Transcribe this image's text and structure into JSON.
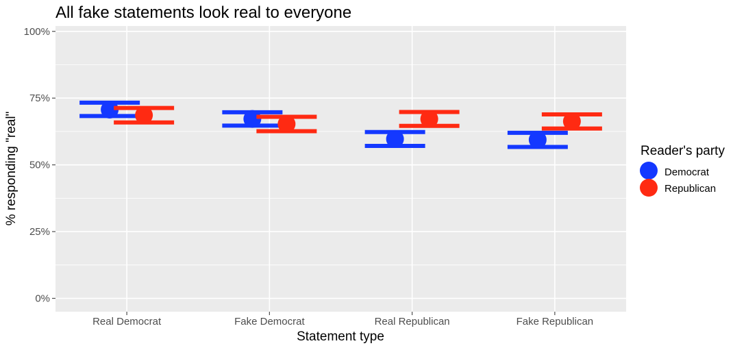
{
  "chart_data": {
    "type": "scatter",
    "title": "All fake statements look real to everyone",
    "xlabel": "Statement type",
    "ylabel": "% responding \"real\"",
    "categories": [
      "Real Democrat",
      "Fake Democrat",
      "Real Republican",
      "Fake Republican"
    ],
    "ylim": [
      -0.05,
      1.02
    ],
    "y_ticks": [
      {
        "value": 0,
        "label": "0%"
      },
      {
        "value": 0.25,
        "label": "25%"
      },
      {
        "value": 0.5,
        "label": "50%"
      },
      {
        "value": 0.75,
        "label": "75%"
      },
      {
        "value": 1,
        "label": "100%"
      }
    ],
    "legend_title": "Reader's party",
    "legend_position": "right",
    "grid": true,
    "series": [
      {
        "name": "Democrat",
        "color": "#1438ff",
        "values": [
          0.707,
          0.672,
          0.597,
          0.594
        ],
        "lower": [
          0.683,
          0.647,
          0.571,
          0.567
        ],
        "upper": [
          0.733,
          0.697,
          0.623,
          0.62
        ]
      },
      {
        "name": "Republican",
        "color": "#ff2a12",
        "values": [
          0.686,
          0.653,
          0.672,
          0.663
        ],
        "lower": [
          0.659,
          0.626,
          0.646,
          0.636
        ],
        "upper": [
          0.713,
          0.68,
          0.698,
          0.689
        ]
      }
    ]
  }
}
